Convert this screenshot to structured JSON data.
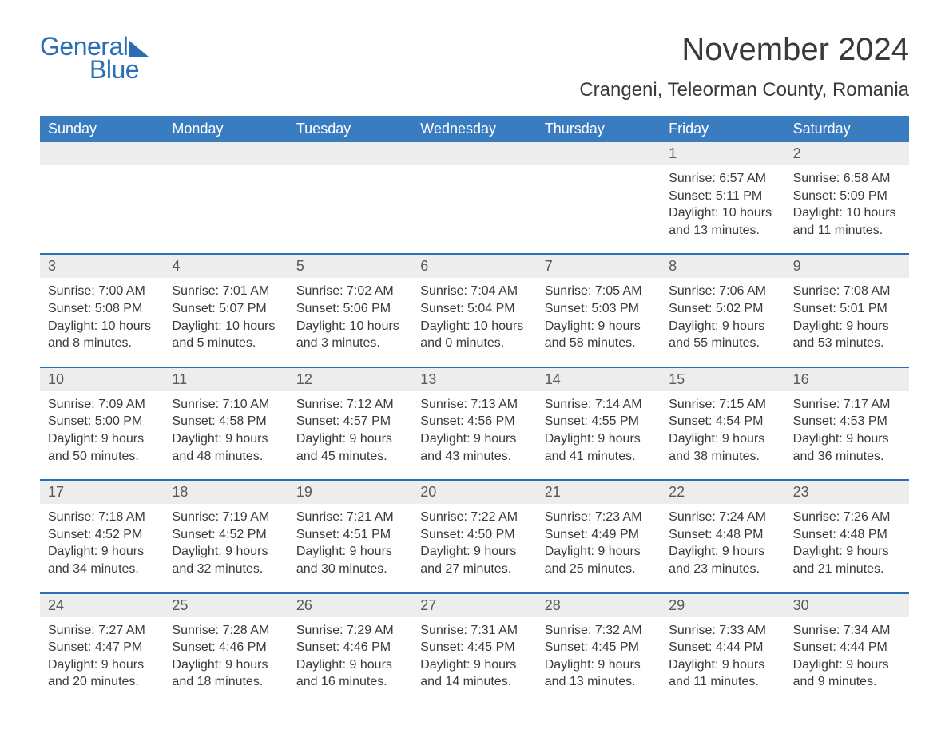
{
  "logo": {
    "text_general": "General",
    "text_blue": "Blue",
    "color": "#2a6fb5"
  },
  "title": "November 2024",
  "location": "Crangeni, Teleorman County, Romania",
  "colors": {
    "header_bg": "#3a7cc0",
    "header_text": "#ffffff",
    "daynum_bg": "#ededed",
    "week_border": "#2a6fb5",
    "body_text": "#3a3a3a",
    "page_bg": "#ffffff"
  },
  "typography": {
    "title_fontsize": 40,
    "location_fontsize": 24,
    "dayhead_fontsize": 18,
    "daynum_fontsize": 18,
    "body_fontsize": 16,
    "font_family": "Arial"
  },
  "layout": {
    "columns": 7,
    "rows": 5,
    "first_weekday": "Sunday"
  },
  "day_headers": [
    "Sunday",
    "Monday",
    "Tuesday",
    "Wednesday",
    "Thursday",
    "Friday",
    "Saturday"
  ],
  "weeks": [
    [
      null,
      null,
      null,
      null,
      null,
      {
        "day": "1",
        "sunrise": "Sunrise: 6:57 AM",
        "sunset": "Sunset: 5:11 PM",
        "daylight1": "Daylight: 10 hours",
        "daylight2": "and 13 minutes."
      },
      {
        "day": "2",
        "sunrise": "Sunrise: 6:58 AM",
        "sunset": "Sunset: 5:09 PM",
        "daylight1": "Daylight: 10 hours",
        "daylight2": "and 11 minutes."
      }
    ],
    [
      {
        "day": "3",
        "sunrise": "Sunrise: 7:00 AM",
        "sunset": "Sunset: 5:08 PM",
        "daylight1": "Daylight: 10 hours",
        "daylight2": "and 8 minutes."
      },
      {
        "day": "4",
        "sunrise": "Sunrise: 7:01 AM",
        "sunset": "Sunset: 5:07 PM",
        "daylight1": "Daylight: 10 hours",
        "daylight2": "and 5 minutes."
      },
      {
        "day": "5",
        "sunrise": "Sunrise: 7:02 AM",
        "sunset": "Sunset: 5:06 PM",
        "daylight1": "Daylight: 10 hours",
        "daylight2": "and 3 minutes."
      },
      {
        "day": "6",
        "sunrise": "Sunrise: 7:04 AM",
        "sunset": "Sunset: 5:04 PM",
        "daylight1": "Daylight: 10 hours",
        "daylight2": "and 0 minutes."
      },
      {
        "day": "7",
        "sunrise": "Sunrise: 7:05 AM",
        "sunset": "Sunset: 5:03 PM",
        "daylight1": "Daylight: 9 hours",
        "daylight2": "and 58 minutes."
      },
      {
        "day": "8",
        "sunrise": "Sunrise: 7:06 AM",
        "sunset": "Sunset: 5:02 PM",
        "daylight1": "Daylight: 9 hours",
        "daylight2": "and 55 minutes."
      },
      {
        "day": "9",
        "sunrise": "Sunrise: 7:08 AM",
        "sunset": "Sunset: 5:01 PM",
        "daylight1": "Daylight: 9 hours",
        "daylight2": "and 53 minutes."
      }
    ],
    [
      {
        "day": "10",
        "sunrise": "Sunrise: 7:09 AM",
        "sunset": "Sunset: 5:00 PM",
        "daylight1": "Daylight: 9 hours",
        "daylight2": "and 50 minutes."
      },
      {
        "day": "11",
        "sunrise": "Sunrise: 7:10 AM",
        "sunset": "Sunset: 4:58 PM",
        "daylight1": "Daylight: 9 hours",
        "daylight2": "and 48 minutes."
      },
      {
        "day": "12",
        "sunrise": "Sunrise: 7:12 AM",
        "sunset": "Sunset: 4:57 PM",
        "daylight1": "Daylight: 9 hours",
        "daylight2": "and 45 minutes."
      },
      {
        "day": "13",
        "sunrise": "Sunrise: 7:13 AM",
        "sunset": "Sunset: 4:56 PM",
        "daylight1": "Daylight: 9 hours",
        "daylight2": "and 43 minutes."
      },
      {
        "day": "14",
        "sunrise": "Sunrise: 7:14 AM",
        "sunset": "Sunset: 4:55 PM",
        "daylight1": "Daylight: 9 hours",
        "daylight2": "and 41 minutes."
      },
      {
        "day": "15",
        "sunrise": "Sunrise: 7:15 AM",
        "sunset": "Sunset: 4:54 PM",
        "daylight1": "Daylight: 9 hours",
        "daylight2": "and 38 minutes."
      },
      {
        "day": "16",
        "sunrise": "Sunrise: 7:17 AM",
        "sunset": "Sunset: 4:53 PM",
        "daylight1": "Daylight: 9 hours",
        "daylight2": "and 36 minutes."
      }
    ],
    [
      {
        "day": "17",
        "sunrise": "Sunrise: 7:18 AM",
        "sunset": "Sunset: 4:52 PM",
        "daylight1": "Daylight: 9 hours",
        "daylight2": "and 34 minutes."
      },
      {
        "day": "18",
        "sunrise": "Sunrise: 7:19 AM",
        "sunset": "Sunset: 4:52 PM",
        "daylight1": "Daylight: 9 hours",
        "daylight2": "and 32 minutes."
      },
      {
        "day": "19",
        "sunrise": "Sunrise: 7:21 AM",
        "sunset": "Sunset: 4:51 PM",
        "daylight1": "Daylight: 9 hours",
        "daylight2": "and 30 minutes."
      },
      {
        "day": "20",
        "sunrise": "Sunrise: 7:22 AM",
        "sunset": "Sunset: 4:50 PM",
        "daylight1": "Daylight: 9 hours",
        "daylight2": "and 27 minutes."
      },
      {
        "day": "21",
        "sunrise": "Sunrise: 7:23 AM",
        "sunset": "Sunset: 4:49 PM",
        "daylight1": "Daylight: 9 hours",
        "daylight2": "and 25 minutes."
      },
      {
        "day": "22",
        "sunrise": "Sunrise: 7:24 AM",
        "sunset": "Sunset: 4:48 PM",
        "daylight1": "Daylight: 9 hours",
        "daylight2": "and 23 minutes."
      },
      {
        "day": "23",
        "sunrise": "Sunrise: 7:26 AM",
        "sunset": "Sunset: 4:48 PM",
        "daylight1": "Daylight: 9 hours",
        "daylight2": "and 21 minutes."
      }
    ],
    [
      {
        "day": "24",
        "sunrise": "Sunrise: 7:27 AM",
        "sunset": "Sunset: 4:47 PM",
        "daylight1": "Daylight: 9 hours",
        "daylight2": "and 20 minutes."
      },
      {
        "day": "25",
        "sunrise": "Sunrise: 7:28 AM",
        "sunset": "Sunset: 4:46 PM",
        "daylight1": "Daylight: 9 hours",
        "daylight2": "and 18 minutes."
      },
      {
        "day": "26",
        "sunrise": "Sunrise: 7:29 AM",
        "sunset": "Sunset: 4:46 PM",
        "daylight1": "Daylight: 9 hours",
        "daylight2": "and 16 minutes."
      },
      {
        "day": "27",
        "sunrise": "Sunrise: 7:31 AM",
        "sunset": "Sunset: 4:45 PM",
        "daylight1": "Daylight: 9 hours",
        "daylight2": "and 14 minutes."
      },
      {
        "day": "28",
        "sunrise": "Sunrise: 7:32 AM",
        "sunset": "Sunset: 4:45 PM",
        "daylight1": "Daylight: 9 hours",
        "daylight2": "and 13 minutes."
      },
      {
        "day": "29",
        "sunrise": "Sunrise: 7:33 AM",
        "sunset": "Sunset: 4:44 PM",
        "daylight1": "Daylight: 9 hours",
        "daylight2": "and 11 minutes."
      },
      {
        "day": "30",
        "sunrise": "Sunrise: 7:34 AM",
        "sunset": "Sunset: 4:44 PM",
        "daylight1": "Daylight: 9 hours",
        "daylight2": "and 9 minutes."
      }
    ]
  ]
}
